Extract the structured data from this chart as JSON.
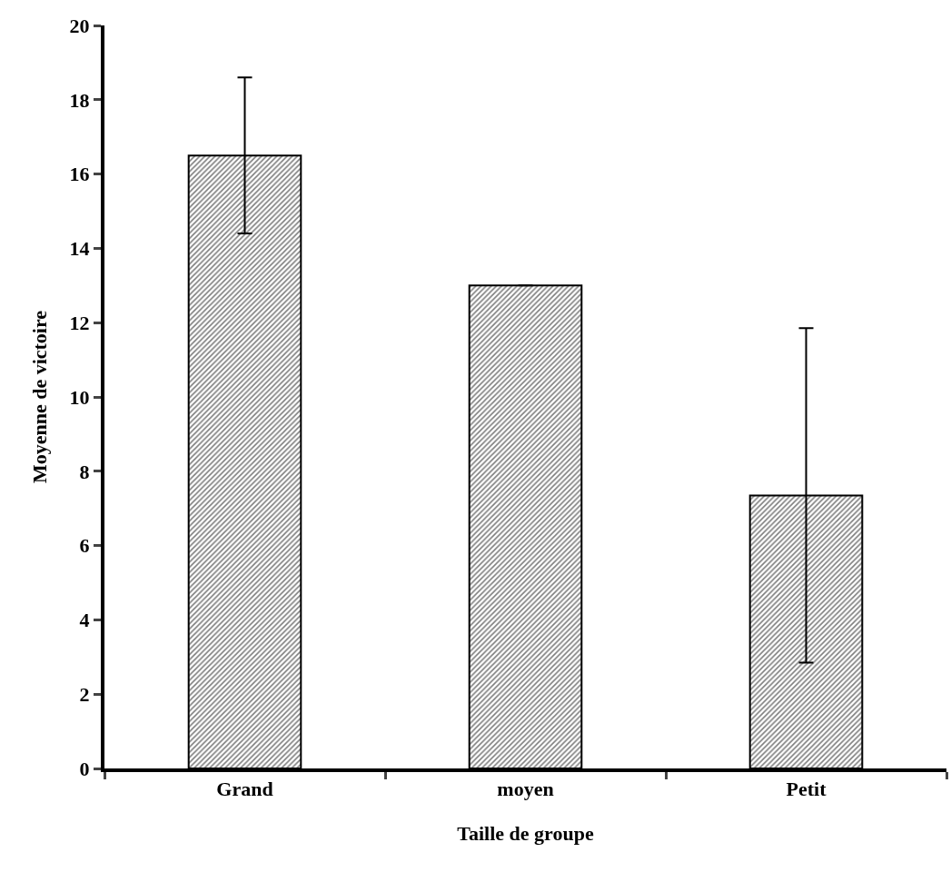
{
  "chart_data": {
    "type": "bar",
    "xlabel": "Taille de groupe",
    "ylabel": "Moyenne de victoire",
    "categories": [
      "Grand",
      "moyen",
      "Petit"
    ],
    "values": [
      16.5,
      13,
      7.35
    ],
    "errors": [
      2.1,
      0,
      4.5
    ],
    "color": "#000000",
    "ylim": [
      0,
      20
    ],
    "yticks": [
      0,
      2,
      4,
      6,
      8,
      10,
      12,
      14,
      16,
      18,
      20
    ]
  }
}
